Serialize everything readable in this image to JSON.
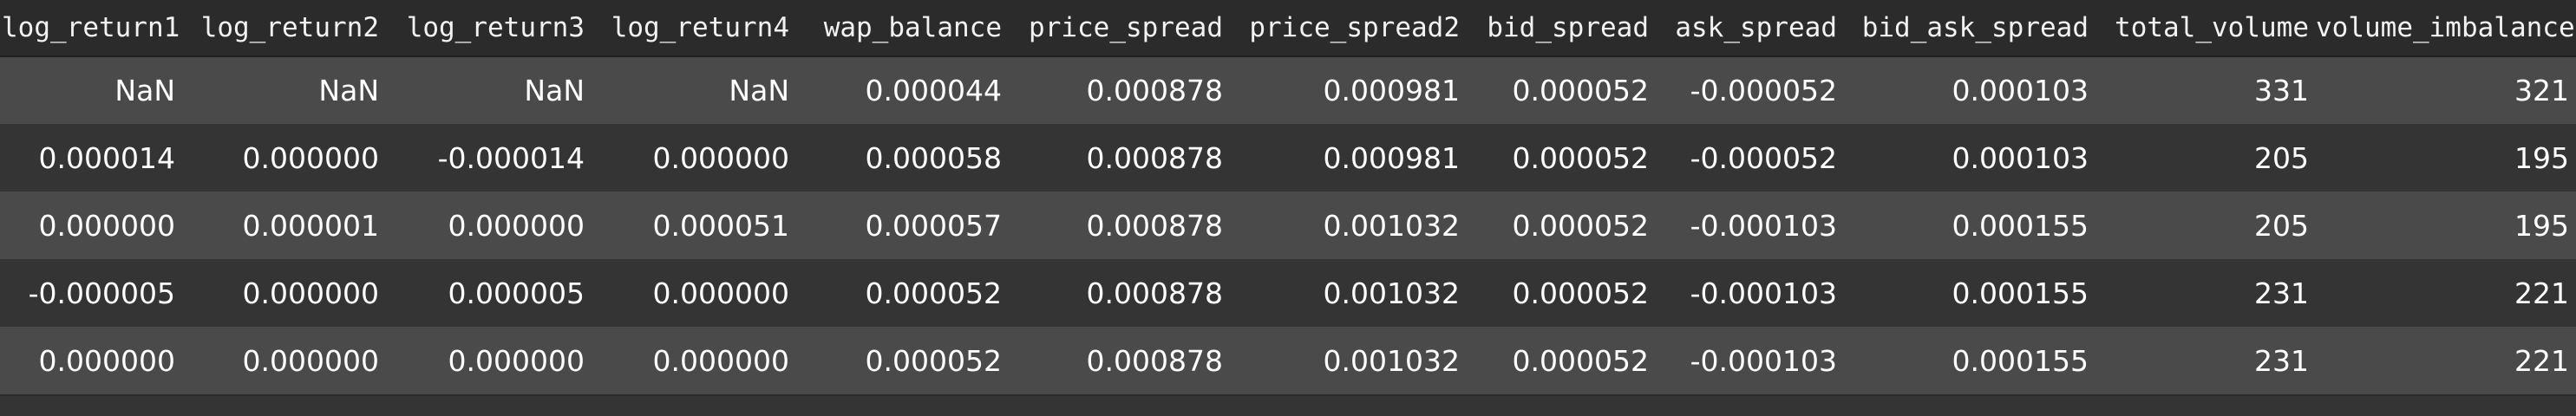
{
  "table": {
    "columns": [
      "log_return1",
      "log_return2",
      "log_return3",
      "log_return4",
      "wap_balance",
      "price_spread",
      "price_spread2",
      "bid_spread",
      "ask_spread",
      "bid_ask_spread",
      "total_volume",
      "volume_imbalance"
    ],
    "rows": [
      [
        "NaN",
        "NaN",
        "NaN",
        "NaN",
        "0.000044",
        "0.000878",
        "0.000981",
        "0.000052",
        "-0.000052",
        "0.000103",
        "331",
        "321"
      ],
      [
        "0.000014",
        "0.000000",
        "-0.000014",
        "0.000000",
        "0.000058",
        "0.000878",
        "0.000981",
        "0.000052",
        "-0.000052",
        "0.000103",
        "205",
        "195"
      ],
      [
        "0.000000",
        "0.000001",
        "0.000000",
        "0.000051",
        "0.000057",
        "0.000878",
        "0.001032",
        "0.000052",
        "-0.000103",
        "0.000155",
        "205",
        "195"
      ],
      [
        "-0.000005",
        "0.000000",
        "0.000005",
        "0.000000",
        "0.000052",
        "0.000878",
        "0.001032",
        "0.000052",
        "-0.000103",
        "0.000155",
        "231",
        "221"
      ],
      [
        "0.000000",
        "0.000000",
        "0.000000",
        "0.000000",
        "0.000052",
        "0.000878",
        "0.001032",
        "0.000052",
        "-0.000103",
        "0.000155",
        "231",
        "221"
      ]
    ]
  }
}
